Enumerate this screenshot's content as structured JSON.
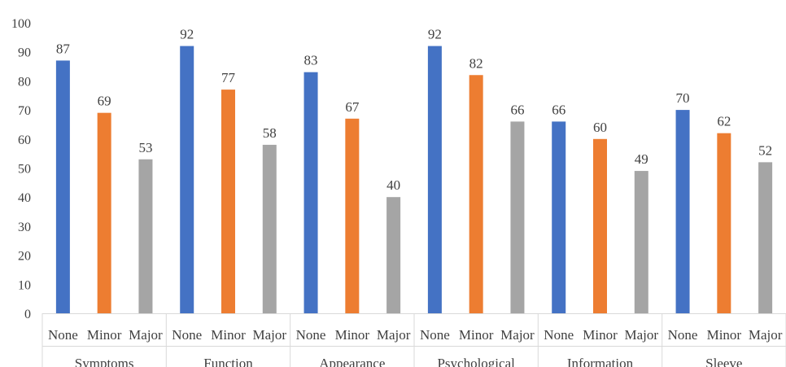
{
  "colors": {
    "None": "#4472c4",
    "Minor": "#ed7d31",
    "Major": "#a5a5a5",
    "axis": "#d9d9d9",
    "text": "#404040"
  },
  "chart_data": {
    "type": "bar",
    "title": "",
    "xlabel": "",
    "ylabel": "",
    "ylim": [
      0,
      100
    ],
    "yticks": [
      0,
      10,
      20,
      30,
      40,
      50,
      60,
      70,
      80,
      90,
      100
    ],
    "grid": false,
    "legend": "none",
    "groups": [
      "Symptoms",
      "Function",
      "Appearance",
      "Psychological",
      "Information",
      "Sleeve"
    ],
    "subcategories": [
      "None",
      "Minor",
      "Major"
    ],
    "series": [
      {
        "name": "None",
        "values": [
          87,
          92,
          83,
          92,
          66,
          70
        ]
      },
      {
        "name": "Minor",
        "values": [
          69,
          77,
          67,
          82,
          60,
          62
        ]
      },
      {
        "name": "Major",
        "values": [
          53,
          58,
          40,
          66,
          49,
          52
        ]
      }
    ]
  }
}
